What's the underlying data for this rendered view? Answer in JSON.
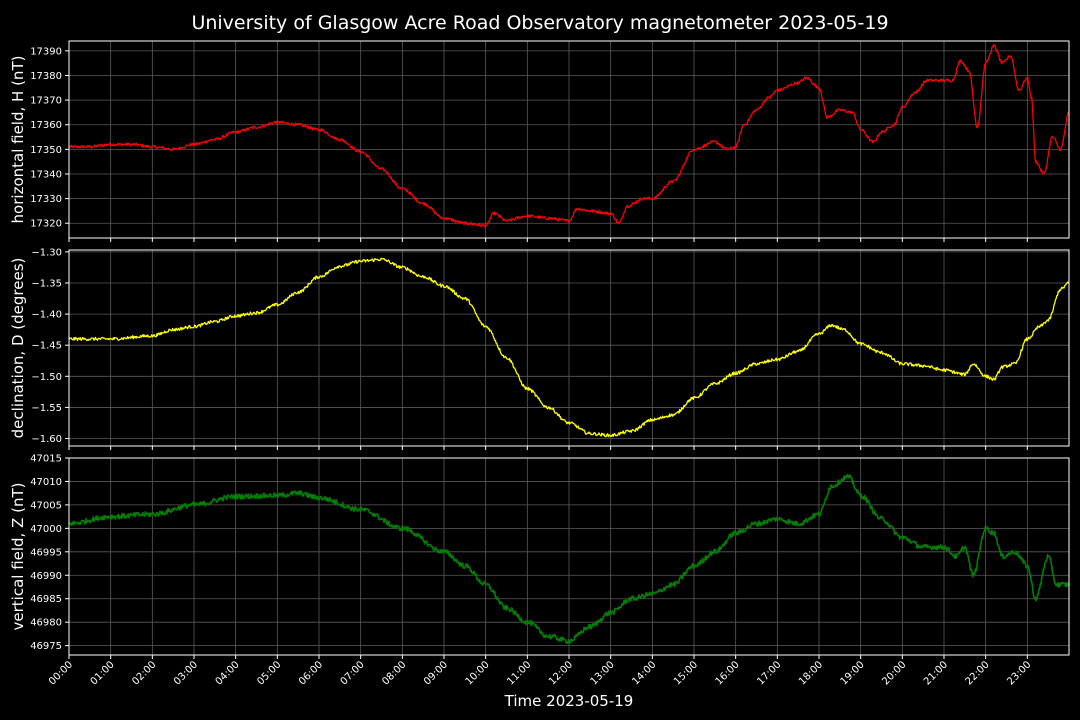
{
  "chart_data": {
    "type": "line",
    "title": "University of Glasgow Acre Road Observatory magnetometer 2023-05-19",
    "xlabel": "Time 2023-05-19",
    "xlim": [
      0,
      24
    ],
    "x_ticks": [
      "00:00",
      "01:00",
      "02:00",
      "03:00",
      "04:00",
      "05:00",
      "06:00",
      "07:00",
      "08:00",
      "09:00",
      "10:00",
      "11:00",
      "12:00",
      "13:00",
      "14:00",
      "15:00",
      "16:00",
      "17:00",
      "18:00",
      "19:00",
      "20:00",
      "21:00",
      "22:00",
      "23:00"
    ],
    "grid": true,
    "panels": [
      {
        "key": "H",
        "ylabel": "horizontal field, H (nT)",
        "color": "#ff0000",
        "ylim": [
          17314,
          17394
        ],
        "yticks": [
          "17320",
          "17330",
          "17340",
          "17350",
          "17360",
          "17370",
          "17380",
          "17390"
        ],
        "noise": 0.6,
        "series": [
          [
            0,
            17351
          ],
          [
            0.5,
            17351
          ],
          [
            1,
            17352
          ],
          [
            1.5,
            17352
          ],
          [
            2,
            17351
          ],
          [
            2.5,
            17350
          ],
          [
            3,
            17352
          ],
          [
            3.5,
            17354
          ],
          [
            4,
            17357
          ],
          [
            4.5,
            17359
          ],
          [
            5,
            17361
          ],
          [
            5.5,
            17360
          ],
          [
            6,
            17358
          ],
          [
            6.5,
            17354
          ],
          [
            7,
            17349
          ],
          [
            7.5,
            17342
          ],
          [
            8,
            17334
          ],
          [
            8.5,
            17328
          ],
          [
            9,
            17322
          ],
          [
            9.5,
            17320
          ],
          [
            10,
            17319
          ],
          [
            10.2,
            17324
          ],
          [
            10.5,
            17321
          ],
          [
            11,
            17323
          ],
          [
            11.5,
            17322
          ],
          [
            12,
            17321
          ],
          [
            12.2,
            17326
          ],
          [
            12.5,
            17325
          ],
          [
            13,
            17324
          ],
          [
            13.2,
            17320
          ],
          [
            13.4,
            17327
          ],
          [
            13.8,
            17330
          ],
          [
            14,
            17330
          ],
          [
            14.5,
            17337
          ],
          [
            15,
            17350
          ],
          [
            15.5,
            17353
          ],
          [
            15.8,
            17350
          ],
          [
            16,
            17351
          ],
          [
            16.2,
            17360
          ],
          [
            16.5,
            17366
          ],
          [
            16.8,
            17371
          ],
          [
            17,
            17374
          ],
          [
            17.5,
            17377
          ],
          [
            17.7,
            17379
          ],
          [
            18,
            17375
          ],
          [
            18.2,
            17363
          ],
          [
            18.5,
            17366
          ],
          [
            18.8,
            17365
          ],
          [
            19,
            17358
          ],
          [
            19.3,
            17353
          ],
          [
            19.5,
            17357
          ],
          [
            19.8,
            17360
          ],
          [
            20,
            17367
          ],
          [
            20.3,
            17373
          ],
          [
            20.6,
            17378
          ],
          [
            21,
            17378
          ],
          [
            21.2,
            17378
          ],
          [
            21.4,
            17386
          ],
          [
            21.6,
            17382
          ],
          [
            21.8,
            17359
          ],
          [
            22,
            17385
          ],
          [
            22.2,
            17392
          ],
          [
            22.4,
            17385
          ],
          [
            22.6,
            17388
          ],
          [
            22.8,
            17374
          ],
          [
            23,
            17379
          ],
          [
            23.1,
            17371
          ],
          [
            23.2,
            17345
          ],
          [
            23.4,
            17340
          ],
          [
            23.6,
            17355
          ],
          [
            23.8,
            17350
          ],
          [
            24,
            17365
          ]
        ]
      },
      {
        "key": "D",
        "ylabel": "declination, D (degrees)",
        "color": "#ffff00",
        "ylim": [
          -1.612,
          -1.297
        ],
        "yticks": [
          "-1.30",
          "-1.35",
          "-1.40",
          "-1.45",
          "-1.50",
          "-1.55",
          "-1.60"
        ],
        "noise": 0.0025,
        "series": [
          [
            0,
            -1.44
          ],
          [
            1,
            -1.44
          ],
          [
            2,
            -1.435
          ],
          [
            2.5,
            -1.425
          ],
          [
            3,
            -1.42
          ],
          [
            3.5,
            -1.412
          ],
          [
            4,
            -1.403
          ],
          [
            4.5,
            -1.398
          ],
          [
            5,
            -1.385
          ],
          [
            5.5,
            -1.365
          ],
          [
            6,
            -1.34
          ],
          [
            6.5,
            -1.323
          ],
          [
            7,
            -1.315
          ],
          [
            7.5,
            -1.312
          ],
          [
            8,
            -1.325
          ],
          [
            8.5,
            -1.34
          ],
          [
            9,
            -1.355
          ],
          [
            9.5,
            -1.375
          ],
          [
            10,
            -1.42
          ],
          [
            10.5,
            -1.47
          ],
          [
            11,
            -1.52
          ],
          [
            11.5,
            -1.55
          ],
          [
            12,
            -1.575
          ],
          [
            12.5,
            -1.592
          ],
          [
            13,
            -1.595
          ],
          [
            13.5,
            -1.588
          ],
          [
            14,
            -1.57
          ],
          [
            14.5,
            -1.562
          ],
          [
            15,
            -1.535
          ],
          [
            15.5,
            -1.512
          ],
          [
            16,
            -1.495
          ],
          [
            16.5,
            -1.48
          ],
          [
            17,
            -1.473
          ],
          [
            17.5,
            -1.46
          ],
          [
            18,
            -1.432
          ],
          [
            18.3,
            -1.418
          ],
          [
            18.6,
            -1.425
          ],
          [
            19,
            -1.448
          ],
          [
            19.5,
            -1.462
          ],
          [
            20,
            -1.48
          ],
          [
            20.5,
            -1.483
          ],
          [
            21,
            -1.49
          ],
          [
            21.5,
            -1.497
          ],
          [
            21.7,
            -1.48
          ],
          [
            22,
            -1.5
          ],
          [
            22.2,
            -1.505
          ],
          [
            22.4,
            -1.485
          ],
          [
            22.7,
            -1.48
          ],
          [
            23,
            -1.44
          ],
          [
            23.3,
            -1.42
          ],
          [
            23.5,
            -1.41
          ],
          [
            23.8,
            -1.36
          ],
          [
            24,
            -1.35
          ]
        ]
      },
      {
        "key": "Z",
        "ylabel": "vertical field, Z (nT)",
        "color": "#008000",
        "ylim": [
          46973,
          47015
        ],
        "yticks": [
          "46975",
          "46980",
          "46985",
          "46990",
          "46995",
          "47000",
          "47005",
          "47010",
          "47015"
        ],
        "noise": 0.55,
        "series": [
          [
            0,
            47001
          ],
          [
            1,
            47002.5
          ],
          [
            2,
            47003
          ],
          [
            3,
            47005
          ],
          [
            4,
            47006.8
          ],
          [
            5,
            47007
          ],
          [
            5.5,
            47007.5
          ],
          [
            6,
            47006.5
          ],
          [
            7,
            47004
          ],
          [
            8,
            47000
          ],
          [
            9,
            46995
          ],
          [
            9.5,
            46992
          ],
          [
            10,
            46988
          ],
          [
            10.5,
            46983
          ],
          [
            11,
            46980
          ],
          [
            11.5,
            46977
          ],
          [
            12,
            46976
          ],
          [
            12.5,
            46979
          ],
          [
            13,
            46982
          ],
          [
            13.5,
            46985
          ],
          [
            14,
            46986
          ],
          [
            14.5,
            46988
          ],
          [
            15,
            46992
          ],
          [
            15.5,
            46995
          ],
          [
            16,
            46999
          ],
          [
            16.5,
            47001
          ],
          [
            17,
            47002
          ],
          [
            17.5,
            47001
          ],
          [
            18,
            47003
          ],
          [
            18.3,
            47009
          ],
          [
            18.7,
            47011
          ],
          [
            19,
            47007
          ],
          [
            19.5,
            47002
          ],
          [
            20,
            46998
          ],
          [
            20.5,
            46996
          ],
          [
            21,
            46996
          ],
          [
            21.3,
            46994
          ],
          [
            21.5,
            46996
          ],
          [
            21.7,
            46990
          ],
          [
            22,
            47000
          ],
          [
            22.2,
            46999
          ],
          [
            22.4,
            46994
          ],
          [
            22.7,
            46995
          ],
          [
            23,
            46992
          ],
          [
            23.2,
            46985
          ],
          [
            23.5,
            46994
          ],
          [
            23.7,
            46988
          ],
          [
            24,
            46988
          ]
        ]
      }
    ]
  }
}
